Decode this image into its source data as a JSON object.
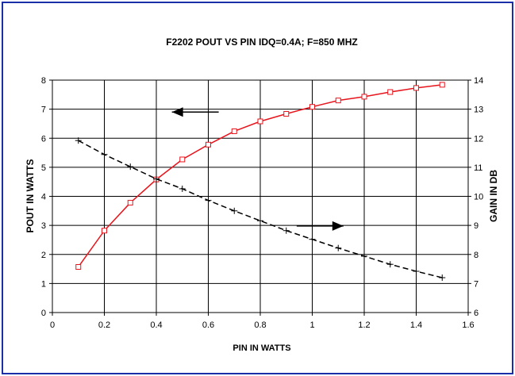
{
  "chart_data": {
    "type": "line",
    "title": "F2202 POUT VS PIN IDQ=0.4A; F=850 MHZ",
    "xlabel": "PIN IN WATTS",
    "ylabel": "POUT IN WATTS",
    "y2label": "GAIN IN DB",
    "xlim": [
      0,
      1.6
    ],
    "ylim": [
      0,
      8
    ],
    "y2lim": [
      6,
      14
    ],
    "x_ticks": [
      "0",
      "0.2",
      "0.4",
      "0.6",
      "0.8",
      "1",
      "1.2",
      "1.4",
      "1.6"
    ],
    "y_ticks": [
      "0",
      "1",
      "2",
      "3",
      "4",
      "5",
      "6",
      "7",
      "8"
    ],
    "y2_ticks": [
      "6",
      "7",
      "8",
      "9",
      "10",
      "11",
      "12",
      "13",
      "14"
    ],
    "grid": true,
    "series": [
      {
        "axis": "left",
        "color": "#e8141c",
        "marker": "square",
        "x": [
          0.1,
          0.2,
          0.3,
          0.4,
          0.5,
          0.6,
          0.7,
          0.8,
          0.9,
          1.0,
          1.1,
          1.2,
          1.3,
          1.4,
          1.5
        ],
        "values": [
          1.57,
          2.82,
          3.78,
          4.58,
          5.27,
          5.78,
          6.24,
          6.58,
          6.84,
          7.08,
          7.3,
          7.43,
          7.59,
          7.73,
          7.84
        ]
      },
      {
        "axis": "right",
        "color": "#000000",
        "marker": "plus",
        "x": [
          0.1,
          0.2,
          0.3,
          0.4,
          0.5,
          0.6,
          0.7,
          0.8,
          0.9,
          1.0,
          1.1,
          1.2,
          1.3,
          1.4,
          1.5
        ],
        "values": [
          11.92,
          11.44,
          11.02,
          10.6,
          10.26,
          9.86,
          9.5,
          9.16,
          8.82,
          8.52,
          8.22,
          7.94,
          7.66,
          7.42,
          7.2
        ]
      }
    ],
    "annotations": [
      {
        "type": "arrow",
        "direction": "left",
        "points_to": "POUT (left axis)"
      },
      {
        "type": "arrow",
        "direction": "right",
        "points_to": "GAIN (right axis)"
      }
    ]
  }
}
